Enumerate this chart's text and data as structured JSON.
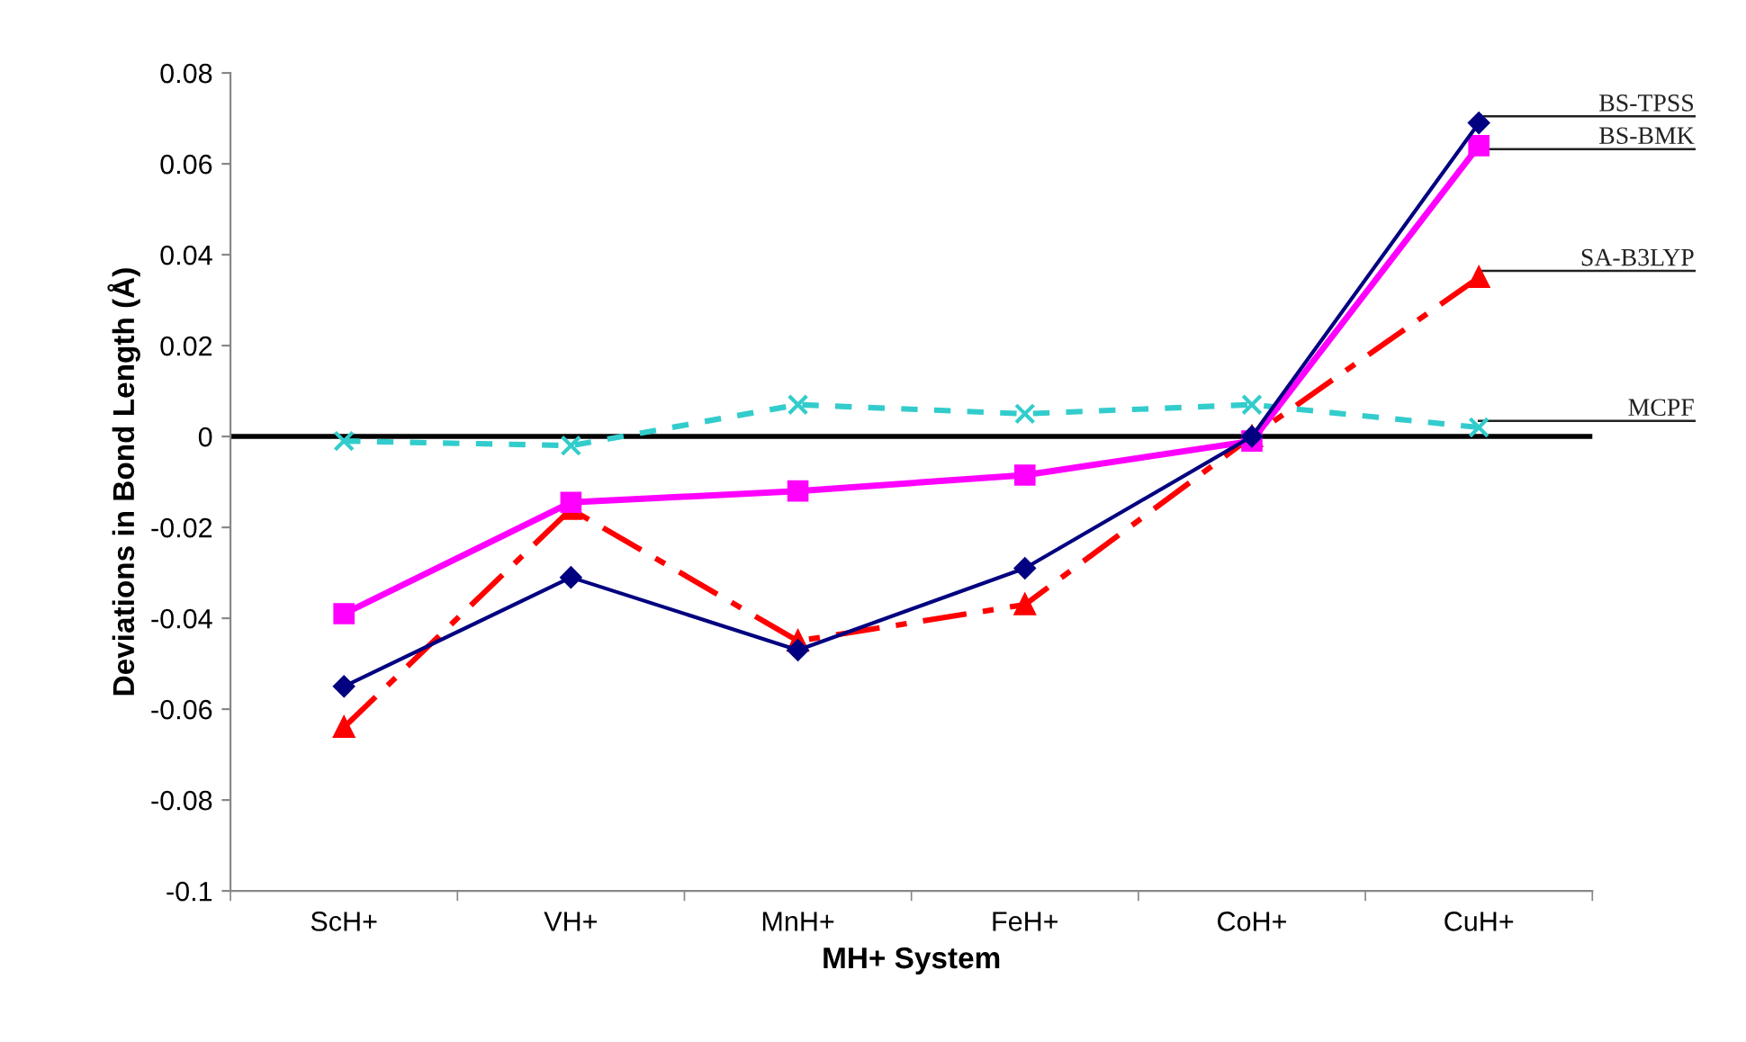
{
  "chart_data": {
    "type": "line",
    "xlabel": "MH+ System",
    "ylabel": "Deviations in Bond Length (Å)",
    "categories": [
      "ScH+",
      "VH+",
      "MnH+",
      "FeH+",
      "CoH+",
      "CuH+"
    ],
    "series": [
      {
        "name": "BS-TPSS",
        "color": "#000080",
        "marker": "diamond",
        "line_style": "solid",
        "values": [
          -0.055,
          -0.031,
          -0.047,
          -0.029,
          0,
          0.069
        ]
      },
      {
        "name": "BS-BMK",
        "color": "#ff00ff",
        "marker": "square",
        "line_style": "solid",
        "values": [
          -0.039,
          -0.0145,
          -0.012,
          -0.0085,
          -0.001,
          0.064
        ]
      },
      {
        "name": "SA-B3LYP",
        "color": "#ff0000",
        "marker": "triangle",
        "line_style": "dashed",
        "values": [
          -0.064,
          -0.016,
          -0.045,
          -0.037,
          0,
          0.035
        ]
      },
      {
        "name": "MCPF",
        "color": "#33cccc",
        "marker": "cross",
        "line_style": "dotted",
        "values": [
          -0.001,
          -0.002,
          0.007,
          0.005,
          0.007,
          0.002
        ]
      }
    ],
    "ylim": [
      -0.1,
      0.08
    ],
    "yticks": [
      -0.1,
      -0.08,
      -0.06,
      -0.04,
      -0.02,
      0,
      0.02,
      0.04,
      0.06,
      0.08
    ],
    "ref_lines": [
      {
        "axis": "y",
        "value": 0,
        "color": "#000000"
      }
    ],
    "grid": false,
    "legend": false
  }
}
